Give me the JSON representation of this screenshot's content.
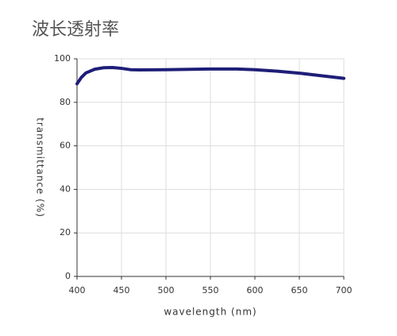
{
  "chart_data": {
    "type": "line",
    "title": "波长透射率",
    "x_label": "wavelength (nm)",
    "y_label": "transmittance (%)",
    "x": [
      400,
      405,
      410,
      420,
      430,
      440,
      450,
      460,
      470,
      500,
      550,
      580,
      600,
      625,
      650,
      675,
      700
    ],
    "series": [
      {
        "name": "transmittance",
        "color": "#1e1e78",
        "values": [
          88.5,
          91.5,
          93.5,
          95.2,
          95.9,
          96.0,
          95.6,
          95.0,
          94.9,
          95.0,
          95.3,
          95.3,
          95.0,
          94.3,
          93.4,
          92.2,
          91.0
        ]
      }
    ],
    "xlim": [
      400,
      700
    ],
    "xticks": [
      400,
      450,
      500,
      550,
      600,
      650,
      700
    ],
    "ylim": [
      0,
      100
    ],
    "yticks": [
      0,
      20,
      40,
      60,
      80,
      100
    ],
    "grid": true
  }
}
